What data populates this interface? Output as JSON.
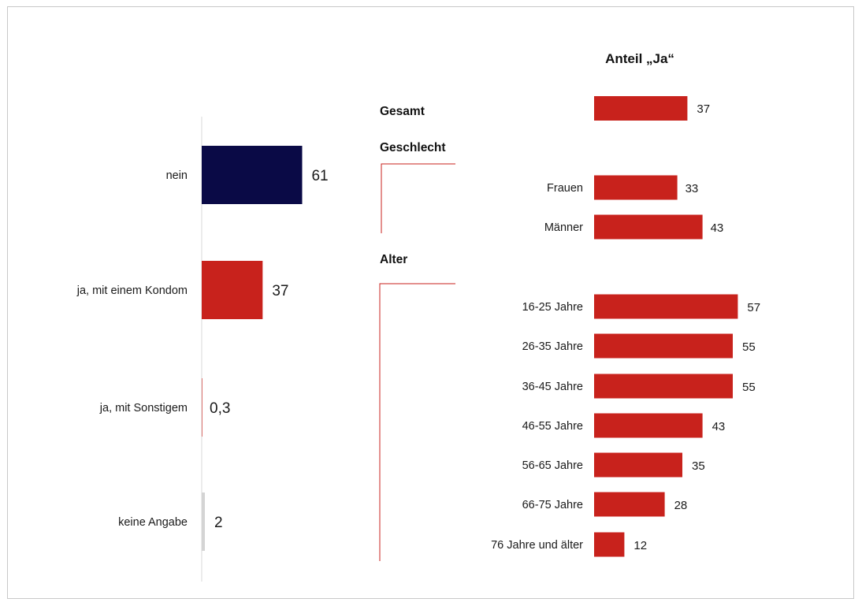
{
  "chart_data": [
    {
      "type": "bar",
      "orientation": "horizontal",
      "categories": [
        "nein",
        "ja, mit einem Kondom",
        "ja, mit Sonstigem",
        "keine Angabe"
      ],
      "values": [
        61,
        37,
        0.3,
        2
      ],
      "value_labels": [
        "61",
        "37",
        "0,3",
        "2"
      ],
      "colors": [
        "#0a0a46",
        "#c8221c",
        "#c8221c",
        "#d4d4d4"
      ]
    },
    {
      "type": "bar",
      "orientation": "horizontal",
      "title": "Anteil „Ja“",
      "groups": [
        {
          "label": "Gesamt",
          "categories": [],
          "values": [
            37
          ],
          "value_labels": [
            "37"
          ]
        },
        {
          "label": "Geschlecht",
          "categories": [
            "Frauen",
            "Männer"
          ],
          "values": [
            33,
            43
          ],
          "value_labels": [
            "33",
            "43"
          ]
        },
        {
          "label": "Alter",
          "categories": [
            "16-25 Jahre",
            "26-35 Jahre",
            "36-45 Jahre",
            "46-55 Jahre",
            "56-65 Jahre",
            "66-75 Jahre",
            "76 Jahre und älter"
          ],
          "values": [
            57,
            55,
            55,
            43,
            35,
            28,
            12
          ],
          "value_labels": [
            "57",
            "55",
            "55",
            "43",
            "35",
            "28",
            "12"
          ]
        }
      ],
      "color": "#c8221c"
    }
  ]
}
